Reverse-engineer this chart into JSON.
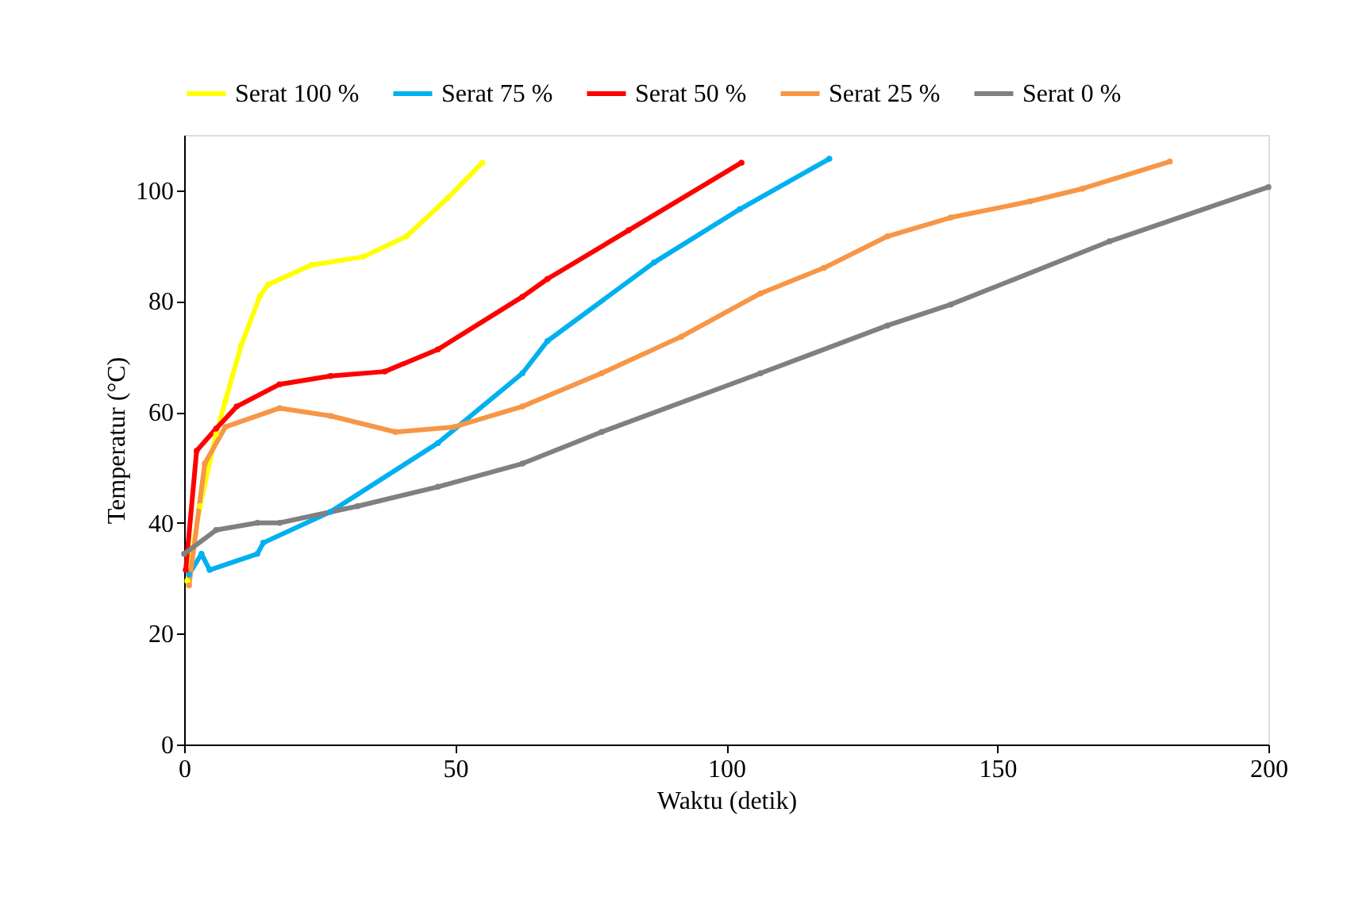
{
  "chart_data": {
    "type": "line",
    "xlabel": "Waktu (detik)",
    "ylabel": "Temperatur (°C)",
    "xlim": [
      0,
      200
    ],
    "xticks": [
      0,
      50,
      100,
      150,
      200
    ],
    "ylim": [
      0,
      110
    ],
    "yticks": [
      0,
      20,
      40,
      60,
      80,
      100
    ],
    "grid": false,
    "legend": "top",
    "marker": "circle",
    "line_style": "solid",
    "series": [
      {
        "name": "Serat 100 %",
        "color": "#ffff00",
        "x": [
          0.6,
          2.9,
          5.9,
          7.6,
          10.5,
          14,
          15.5,
          23.4,
          33,
          41,
          48.6,
          55
        ],
        "values": [
          29.5,
          43,
          56,
          62,
          72,
          81,
          83,
          86.5,
          88,
          91.7,
          98.6,
          105
        ]
      },
      {
        "name": "Serat 75 %",
        "color": "#00b0f0",
        "x": [
          0.9,
          3.2,
          4.7,
          13.5,
          14.6,
          27,
          46.8,
          62.4,
          67,
          86.7,
          102.5,
          119
        ],
        "values": [
          30.7,
          34.4,
          31.5,
          34.4,
          36.4,
          42,
          54.4,
          67,
          72.8,
          87,
          96.6,
          105.7
        ]
      },
      {
        "name": "Serat 50 %",
        "color": "#ff0000",
        "x": [
          0.3,
          2.3,
          5.9,
          9.7,
          17.6,
          27,
          37,
          46.8,
          62.4,
          67,
          82,
          102.8
        ],
        "values": [
          31.5,
          53,
          57,
          61,
          65,
          66.5,
          67.3,
          71.3,
          80.8,
          84,
          92.8,
          105
        ]
      },
      {
        "name": "Serat 25 %",
        "color": "#f79646",
        "x": [
          0.9,
          3.8,
          7.6,
          17.6,
          27,
          39,
          49.8,
          62.4,
          77,
          91.7,
          106.3,
          118,
          129.7,
          141.4,
          156,
          165.7,
          181.8
        ],
        "values": [
          28.7,
          50.7,
          57.3,
          60.7,
          59.3,
          56.4,
          57.3,
          61,
          67,
          73.6,
          81.4,
          86,
          91.7,
          95.1,
          98,
          100.3,
          105.2
        ]
      },
      {
        "name": "Serat 0 %",
        "color": "#808080",
        "x": [
          0,
          5.9,
          13.5,
          17.6,
          32,
          46.8,
          62.4,
          77,
          106.3,
          129.7,
          141.4,
          170.7,
          200
        ],
        "values": [
          34.4,
          38.7,
          40,
          40,
          43,
          46.5,
          50.7,
          56.4,
          67,
          75.6,
          79.4,
          90.8,
          100.6
        ]
      }
    ]
  }
}
